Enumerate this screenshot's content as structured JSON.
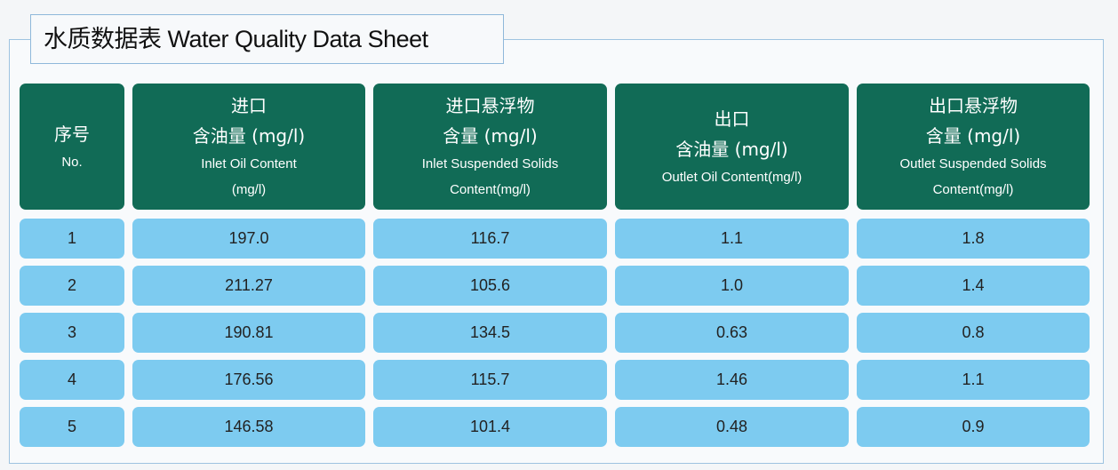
{
  "title": "水质数据表  Water Quality Data Sheet",
  "colors": {
    "header_bg": "#116b56",
    "row_bg": "#7dcbf0",
    "frame_border": "#9ec3e0"
  },
  "headers": [
    {
      "zh1": "序号",
      "zh2": "",
      "en1": "No.",
      "en2": ""
    },
    {
      "zh1": "进口",
      "zh2": "含油量 (mg/l)",
      "en1": "Inlet Oil Content",
      "en2": "(mg/l)"
    },
    {
      "zh1": "进口悬浮物",
      "zh2": "含量 (mg/l)",
      "en1": "Inlet Suspended Solids",
      "en2": "Content(mg/l)"
    },
    {
      "zh1": "出口",
      "zh2": "含油量 (mg/l)",
      "en1": "Outlet Oil Content(mg/l)",
      "en2": ""
    },
    {
      "zh1": "出口悬浮物",
      "zh2": "含量 (mg/l)",
      "en1": "Outlet Suspended Solids",
      "en2": "Content(mg/l)"
    }
  ],
  "rows": [
    [
      "1",
      "197.0",
      "116.7",
      "1.1",
      "1.8"
    ],
    [
      "2",
      "211.27",
      "105.6",
      "1.0",
      "1.4"
    ],
    [
      "3",
      "190.81",
      "134.5",
      "0.63",
      "0.8"
    ],
    [
      "4",
      "176.56",
      "115.7",
      "1.46",
      "1.1"
    ],
    [
      "5",
      "146.58",
      "101.4",
      "0.48",
      "0.9"
    ]
  ]
}
